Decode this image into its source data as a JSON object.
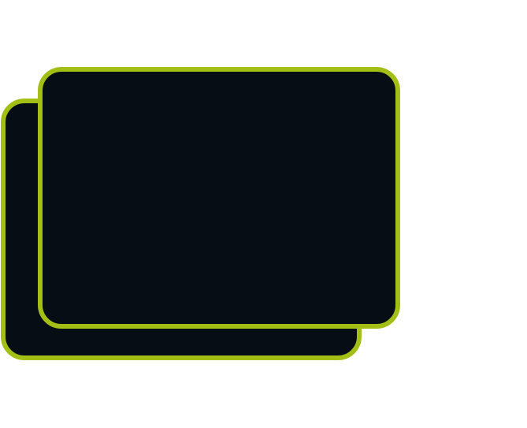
{
  "cards": [
    {
      "name": "back-card",
      "fill_color": "#060d14",
      "border_color": "#a3be14"
    },
    {
      "name": "front-card",
      "fill_color": "#060d14",
      "border_color": "#a3be14"
    }
  ],
  "background_color": "#ffffff"
}
